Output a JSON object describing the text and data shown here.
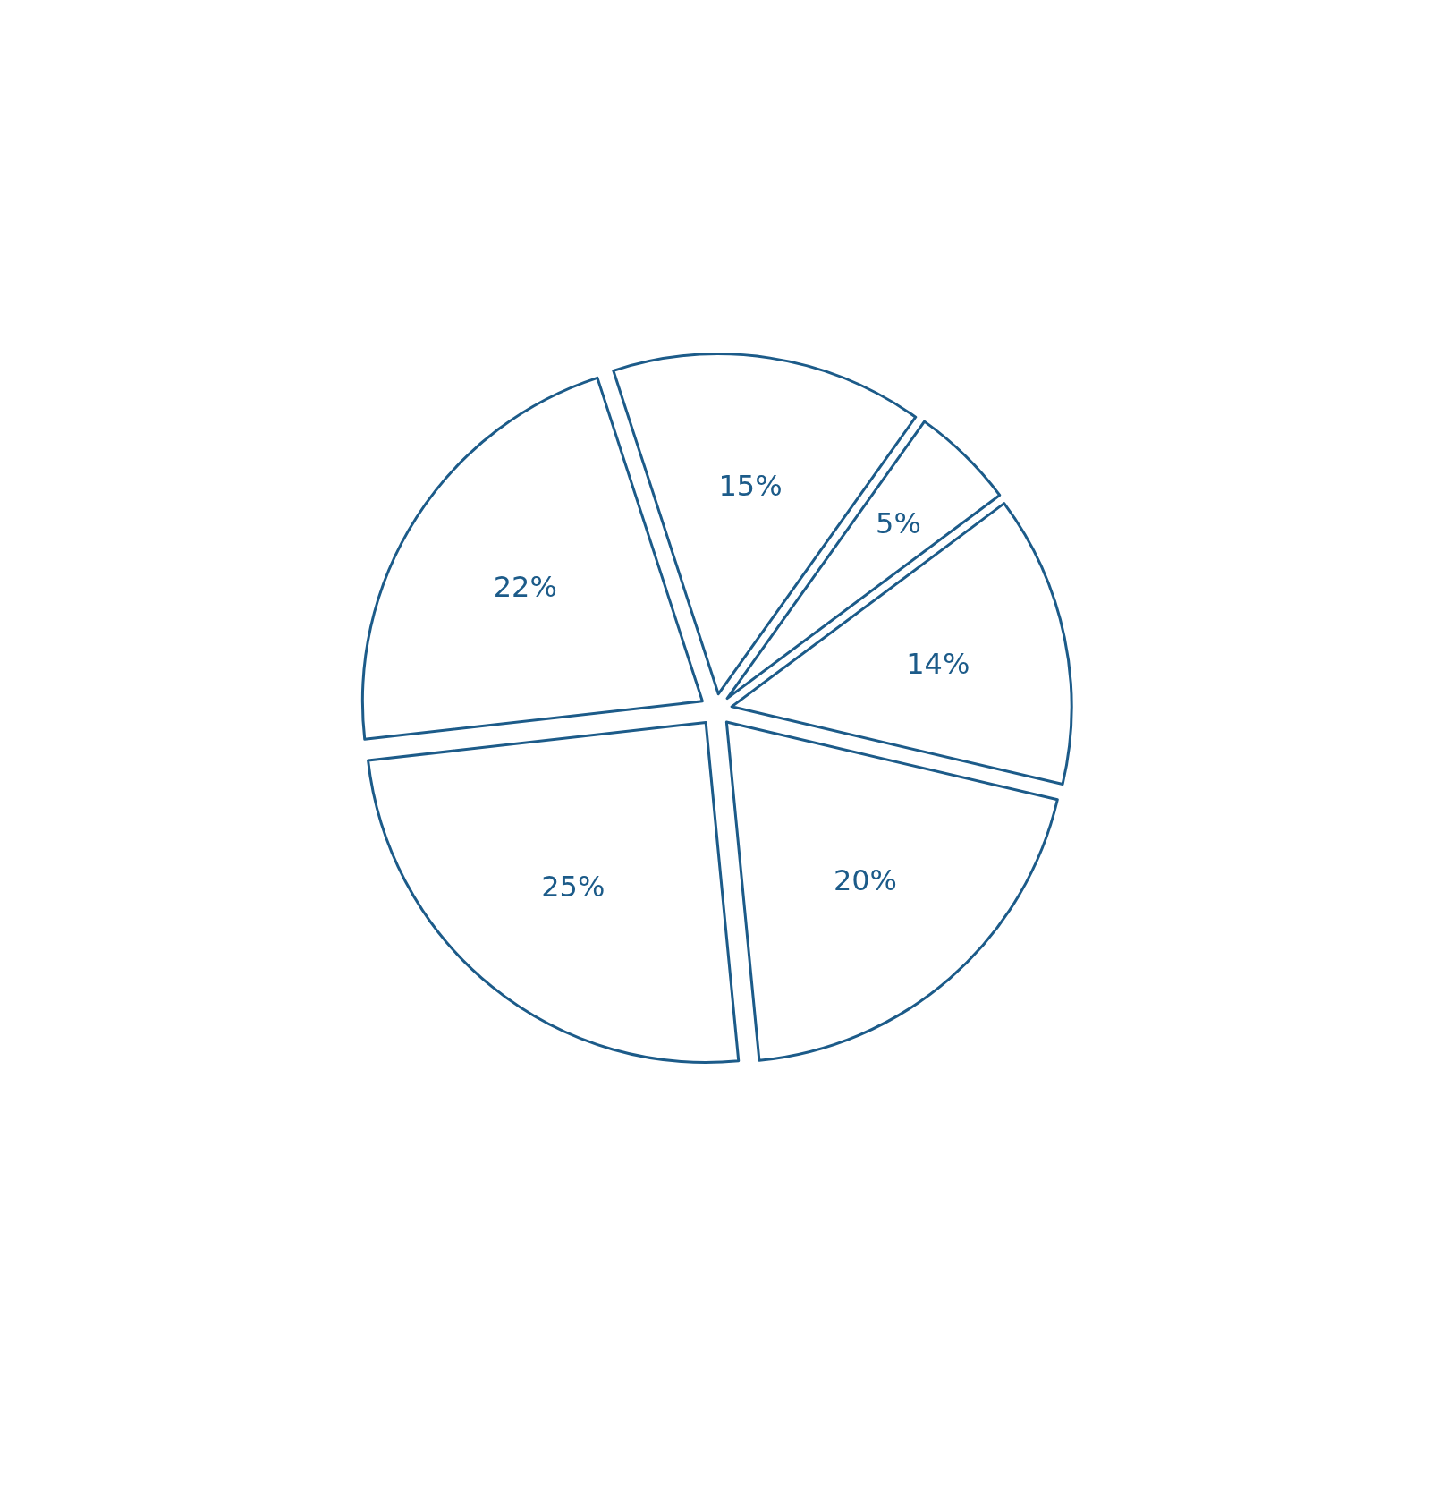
{
  "chart_data": {
    "type": "pie",
    "categories": [
      null,
      null,
      null,
      null,
      null,
      null
    ],
    "values": [
      15,
      5,
      14,
      20,
      25,
      22
    ],
    "value_labels": [
      "15%",
      "5%",
      "14%",
      "20%",
      "25%",
      "22%"
    ],
    "colors": [
      "#1c5b89",
      "#1c5b89",
      "#1c5b89",
      "#1c5b89",
      "#1c5b89",
      "#1c5b89"
    ]
  }
}
